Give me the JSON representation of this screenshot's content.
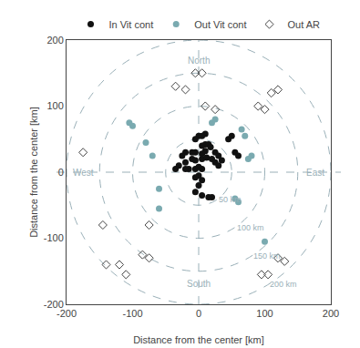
{
  "chart_data": {
    "type": "scatter",
    "xlabel": "Distance from the center [km]",
    "ylabel": "Distance from the center [km]",
    "xlim": [
      -200,
      200
    ],
    "ylim": [
      -200,
      200
    ],
    "xticks": [
      -200,
      -100,
      0,
      100,
      200
    ],
    "yticks": [
      -200,
      -100,
      0,
      100,
      200
    ],
    "grid": false,
    "legend": "top",
    "series": [
      {
        "name": "Out AR",
        "marker": "diamond-open",
        "color": "#444444",
        "values": [
          [
            -5,
            150
          ],
          [
            5,
            150
          ],
          [
            -35,
            130
          ],
          [
            -20,
            125
          ],
          [
            10,
            100
          ],
          [
            25,
            95
          ],
          [
            -175,
            30
          ],
          [
            -145,
            -80
          ],
          [
            -120,
            -140
          ],
          [
            -140,
            -140
          ],
          [
            -110,
            -155
          ],
          [
            -75,
            -80
          ],
          [
            90,
            100
          ],
          [
            100,
            95
          ],
          [
            110,
            120
          ],
          [
            120,
            125
          ],
          [
            120,
            -130
          ],
          [
            130,
            -135
          ],
          [
            95,
            -155
          ],
          [
            105,
            -155
          ],
          [
            -75,
            -130
          ],
          [
            -85,
            -125
          ]
        ]
      },
      {
        "name": "Out Vit cont",
        "marker": "circle",
        "color": "#7aaab0",
        "values": [
          [
            -100,
            70
          ],
          [
            -105,
            75
          ],
          [
            -80,
            45
          ],
          [
            -70,
            25
          ],
          [
            -60,
            -25
          ],
          [
            -60,
            -55
          ],
          [
            20,
            75
          ],
          [
            25,
            80
          ],
          [
            65,
            65
          ],
          [
            70,
            55
          ],
          [
            75,
            20
          ],
          [
            80,
            25
          ],
          [
            100,
            -105
          ],
          [
            55,
            -40
          ],
          [
            60,
            -45
          ]
        ]
      },
      {
        "name": "In Vit cont",
        "marker": "circle",
        "color": "#111111",
        "values": [
          [
            0,
            -5
          ],
          [
            -5,
            -8
          ],
          [
            5,
            -12
          ],
          [
            0,
            -20
          ],
          [
            -5,
            5
          ],
          [
            5,
            5
          ],
          [
            0,
            8
          ],
          [
            -15,
            5
          ],
          [
            -20,
            15
          ],
          [
            -25,
            25
          ],
          [
            -20,
            30
          ],
          [
            -10,
            30
          ],
          [
            -5,
            30
          ],
          [
            5,
            28
          ],
          [
            10,
            32
          ],
          [
            5,
            40
          ],
          [
            10,
            42
          ],
          [
            15,
            42
          ],
          [
            18,
            38
          ],
          [
            25,
            30
          ],
          [
            30,
            25
          ],
          [
            35,
            18
          ],
          [
            -10,
            20
          ],
          [
            -5,
            18
          ],
          [
            5,
            20
          ],
          [
            12,
            22
          ],
          [
            20,
            20
          ],
          [
            25,
            15
          ],
          [
            30,
            10
          ],
          [
            0,
            55
          ],
          [
            10,
            58
          ],
          [
            5,
            55
          ],
          [
            -5,
            50
          ],
          [
            45,
            50
          ],
          [
            50,
            55
          ],
          [
            -30,
            10
          ],
          [
            -35,
            5
          ],
          [
            55,
            30
          ],
          [
            60,
            25
          ],
          [
            -5,
            -30
          ],
          [
            5,
            -35
          ],
          [
            15,
            -38
          ],
          [
            20,
            -38
          ],
          [
            -20,
            5
          ]
        ]
      }
    ],
    "rings": {
      "color": "#9ab0b8",
      "radii": [
        50,
        100,
        150,
        200
      ],
      "labels": [
        {
          "text": "50 km",
          "x": 28,
          "y": -42
        },
        {
          "text": "100 km",
          "x": 55,
          "y": -84
        },
        {
          "text": "150 km",
          "x": 80,
          "y": -127
        },
        {
          "text": "200 km",
          "x": 105,
          "y": -170
        }
      ]
    },
    "reference_lines": {
      "x": 0,
      "y": 0,
      "color": "#9ab0b8"
    },
    "compass": {
      "color": "#9ab0b8",
      "labels": [
        {
          "text": "North",
          "x": 0,
          "y": 158
        },
        {
          "text": "South",
          "x": 0,
          "y": -158
        },
        {
          "text": "East",
          "x": 193,
          "y": 0
        },
        {
          "text": "West",
          "x": -193,
          "y": 0
        }
      ]
    }
  }
}
